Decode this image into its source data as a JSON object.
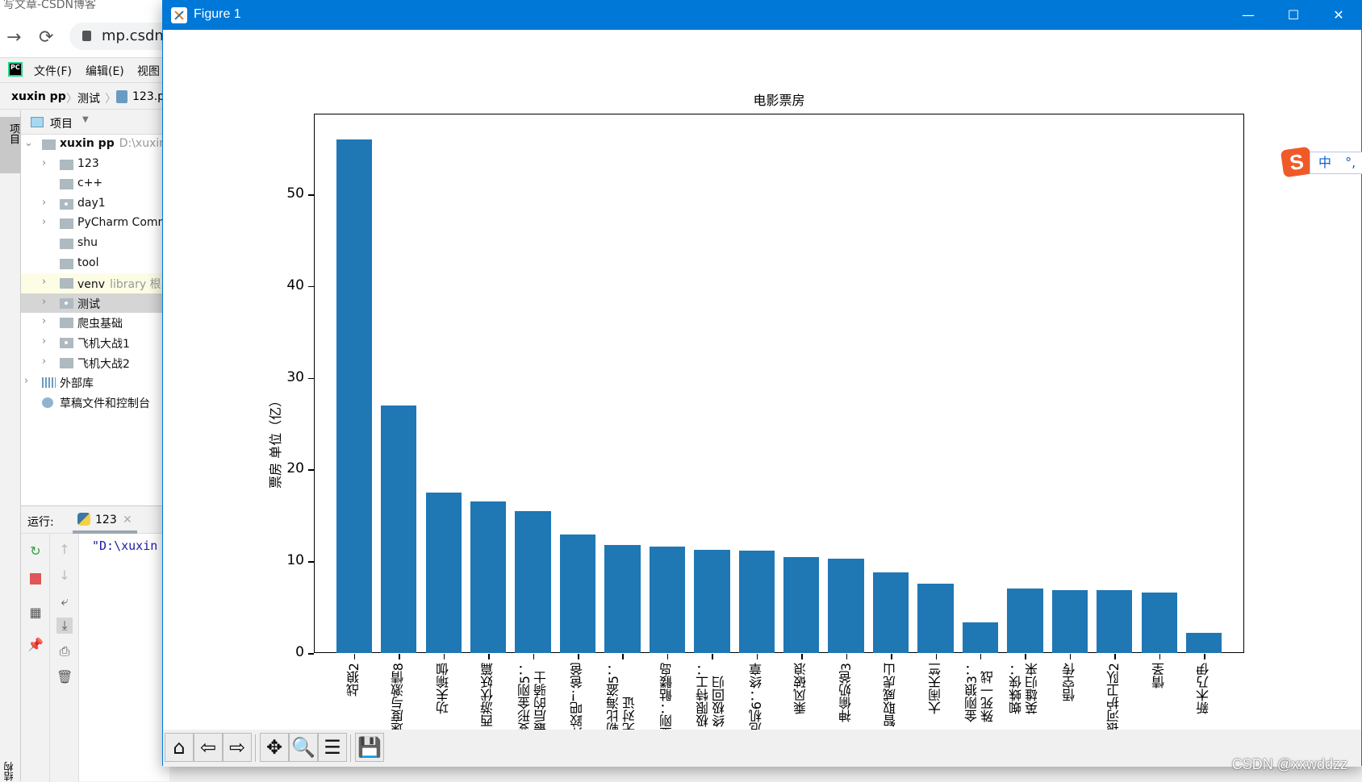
{
  "browser": {
    "tab_title": "写文章-CSDN博客",
    "back_icon": "→",
    "reload_icon": "⟳",
    "url": "mp.csdn."
  },
  "ide": {
    "menu": [
      "文件(F)",
      "编辑(E)",
      "视图"
    ],
    "breadcrumb": [
      "xuxin pp",
      "测试",
      "123.p"
    ],
    "side_tab": "项目",
    "side_tab_bottom": "结构",
    "project_header": "项目",
    "tree": [
      {
        "label": "xuxin pp",
        "hint": "D:\\xuxin",
        "bold": true,
        "level": 0,
        "expanded": true,
        "type": "folder"
      },
      {
        "label": "123",
        "level": 1,
        "arrow": true,
        "type": "folder"
      },
      {
        "label": "c++",
        "level": 1,
        "arrow": false,
        "type": "folder"
      },
      {
        "label": "day1",
        "level": 1,
        "arrow": true,
        "type": "package"
      },
      {
        "label": "PyCharm Comm",
        "level": 1,
        "arrow": true,
        "type": "folder"
      },
      {
        "label": "shu",
        "level": 1,
        "arrow": false,
        "type": "folder"
      },
      {
        "label": "tool",
        "level": 1,
        "arrow": false,
        "type": "folder"
      },
      {
        "label": "venv",
        "hint": "library 根",
        "level": 1,
        "arrow": true,
        "type": "folder",
        "highlight": "lib"
      },
      {
        "label": "测试",
        "level": 1,
        "arrow": true,
        "type": "package",
        "highlight": "selected"
      },
      {
        "label": "爬虫基础",
        "level": 1,
        "arrow": true,
        "type": "folder"
      },
      {
        "label": "飞机大战1",
        "level": 1,
        "arrow": true,
        "type": "package"
      },
      {
        "label": "飞机大战2",
        "level": 1,
        "arrow": true,
        "type": "folder"
      },
      {
        "label": "外部库",
        "level": 0,
        "arrow": true,
        "type": "library"
      },
      {
        "label": "草稿文件和控制台",
        "level": 0,
        "arrow": false,
        "type": "scratch"
      }
    ],
    "run": {
      "label": "运行:",
      "tab_name": "123",
      "output": "\"D:\\xuxin"
    }
  },
  "figure": {
    "window_title": "Figure 1",
    "minimize": "—",
    "maximize": "☐",
    "close": "✕",
    "toolbar": [
      {
        "name": "home-button",
        "icon": "home-icon",
        "glyph": "⌂"
      },
      {
        "name": "back-button",
        "icon": "arrow-left-icon",
        "glyph": "⇦"
      },
      {
        "name": "forward-button",
        "icon": "arrow-right-icon",
        "glyph": "⇨"
      },
      {
        "name": "pan-button",
        "icon": "move-icon",
        "glyph": "✥"
      },
      {
        "name": "zoom-button",
        "icon": "magnifier-icon",
        "glyph": "🔍"
      },
      {
        "name": "subplots-button",
        "icon": "sliders-icon",
        "glyph": "☰"
      },
      {
        "name": "save-button",
        "icon": "floppy-disk-icon",
        "glyph": "💾"
      }
    ]
  },
  "chart_data": {
    "type": "bar",
    "title": "电影票房",
    "xlabel": "",
    "ylabel": "票房 单位（亿）",
    "ylim": [
      0,
      58.8
    ],
    "yticks": [
      0,
      10,
      20,
      30,
      40,
      50
    ],
    "grid": false,
    "legend": null,
    "bar_color": "#1f77b4",
    "categories": [
      "战狼2",
      "速度与激情8",
      "功夫瑜伽",
      "西游伏妖篇",
      "变形金刚5：\n最后的骑士",
      "摔跤吧！爸爸",
      "加勒比海盗5：\n死无对证",
      "金刚：骷髅岛",
      "极限特工：\n终极回归",
      "生化危机6：终章",
      "乘风破浪",
      "神偷奶爸3",
      "智取威虎山",
      "大闹天竺",
      "金刚狼3：\n殊死一战",
      "蜘蛛侠：\n英雄归来",
      "悟空传",
      "银河护卫队2",
      "情圣",
      "新木乃伊"
    ],
    "values": [
      56.01,
      26.94,
      17.53,
      16.49,
      15.45,
      12.96,
      11.8,
      11.61,
      11.28,
      11.12,
      10.49,
      10.3,
      8.75,
      7.55,
      3.32,
      6.99,
      6.88,
      6.86,
      6.58,
      2.23
    ]
  },
  "ime": {
    "logo": "S",
    "mode": "中",
    "punct": "°,"
  },
  "watermark": "CSDN @xxwddzz"
}
